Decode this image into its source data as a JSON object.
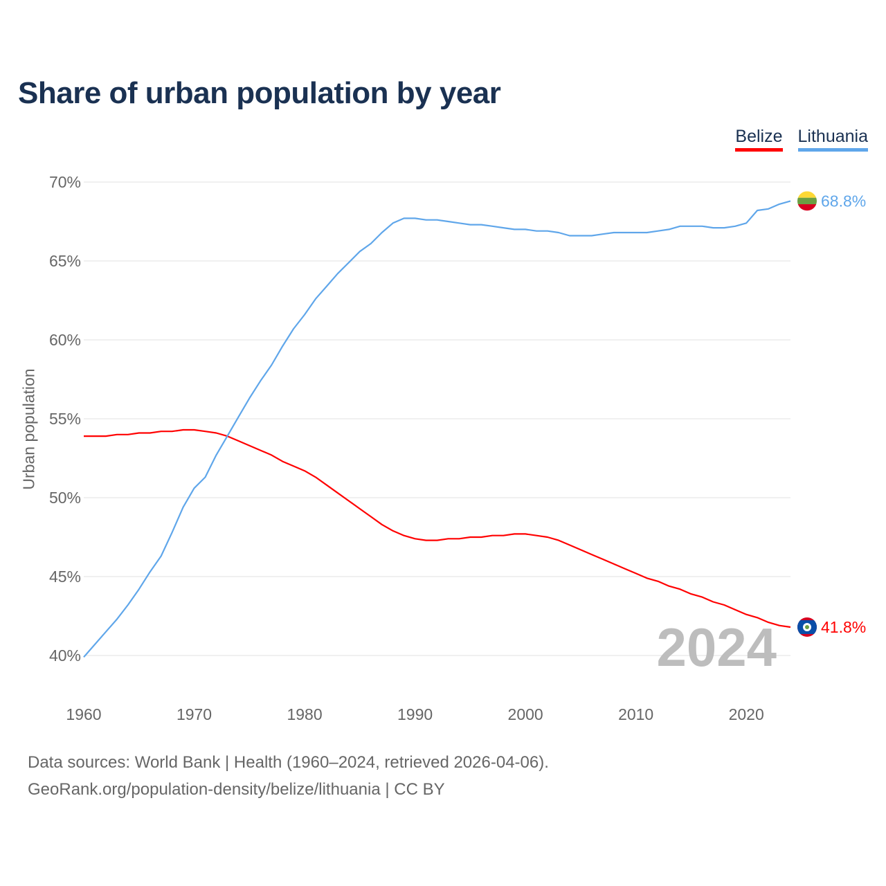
{
  "chart_data": {
    "type": "line",
    "title": "Share of urban population by year",
    "xlabel": "",
    "ylabel": "Urban population",
    "xlim": [
      1960,
      2024
    ],
    "ylim": [
      40,
      70
    ],
    "grid": true,
    "legend_placement": "top-right",
    "x_ticks": [
      "1960",
      "1970",
      "1980",
      "1990",
      "2000",
      "2010",
      "2020"
    ],
    "y_ticks": [
      "40%",
      "45%",
      "50%",
      "55%",
      "60%",
      "65%",
      "70%"
    ],
    "year_watermark": "2024",
    "x": [
      1960,
      1961,
      1962,
      1963,
      1964,
      1965,
      1966,
      1967,
      1968,
      1969,
      1970,
      1971,
      1972,
      1973,
      1974,
      1975,
      1976,
      1977,
      1978,
      1979,
      1980,
      1981,
      1982,
      1983,
      1984,
      1985,
      1986,
      1987,
      1988,
      1989,
      1990,
      1991,
      1992,
      1993,
      1994,
      1995,
      1996,
      1997,
      1998,
      1999,
      2000,
      2001,
      2002,
      2003,
      2004,
      2005,
      2006,
      2007,
      2008,
      2009,
      2010,
      2011,
      2012,
      2013,
      2014,
      2015,
      2016,
      2017,
      2018,
      2019,
      2020,
      2021,
      2022,
      2023,
      2024
    ],
    "series": [
      {
        "name": "Belize",
        "color": "#ff0000",
        "end_label": "41.8%",
        "flag": "belize-flag",
        "values": [
          53.9,
          53.9,
          53.9,
          54.0,
          54.0,
          54.1,
          54.1,
          54.2,
          54.2,
          54.3,
          54.3,
          54.2,
          54.1,
          53.9,
          53.6,
          53.3,
          53.0,
          52.7,
          52.3,
          52.0,
          51.7,
          51.3,
          50.8,
          50.3,
          49.8,
          49.3,
          48.8,
          48.3,
          47.9,
          47.6,
          47.4,
          47.3,
          47.3,
          47.4,
          47.4,
          47.5,
          47.5,
          47.6,
          47.6,
          47.7,
          47.7,
          47.6,
          47.5,
          47.3,
          47.0,
          46.7,
          46.4,
          46.1,
          45.8,
          45.5,
          45.2,
          44.9,
          44.7,
          44.4,
          44.2,
          43.9,
          43.7,
          43.4,
          43.2,
          42.9,
          42.6,
          42.4,
          42.1,
          41.9,
          41.8
        ]
      },
      {
        "name": "Lithuania",
        "color": "#5fa6ea",
        "end_label": "68.8%",
        "flag": "lithuania-flag",
        "values": [
          39.9,
          40.7,
          41.5,
          42.3,
          43.2,
          44.2,
          45.3,
          46.3,
          47.8,
          49.4,
          50.6,
          51.3,
          52.7,
          53.9,
          55.1,
          56.3,
          57.4,
          58.4,
          59.6,
          60.7,
          61.6,
          62.6,
          63.4,
          64.2,
          64.9,
          65.6,
          66.1,
          66.8,
          67.4,
          67.7,
          67.7,
          67.6,
          67.6,
          67.5,
          67.4,
          67.3,
          67.3,
          67.2,
          67.1,
          67.0,
          67.0,
          66.9,
          66.9,
          66.8,
          66.6,
          66.6,
          66.6,
          66.7,
          66.8,
          66.8,
          66.8,
          66.8,
          66.9,
          67.0,
          67.2,
          67.2,
          67.2,
          67.1,
          67.1,
          67.2,
          67.4,
          68.2,
          68.3,
          68.6,
          68.8
        ]
      }
    ]
  },
  "legend": {
    "items": [
      "Belize",
      "Lithuania"
    ]
  },
  "footer": {
    "sources": "Data sources: World Bank | Health (1960–2024, retrieved 2026-04-06).",
    "attribution": "GeoRank.org/population-density/belize/lithuania | CC BY"
  }
}
